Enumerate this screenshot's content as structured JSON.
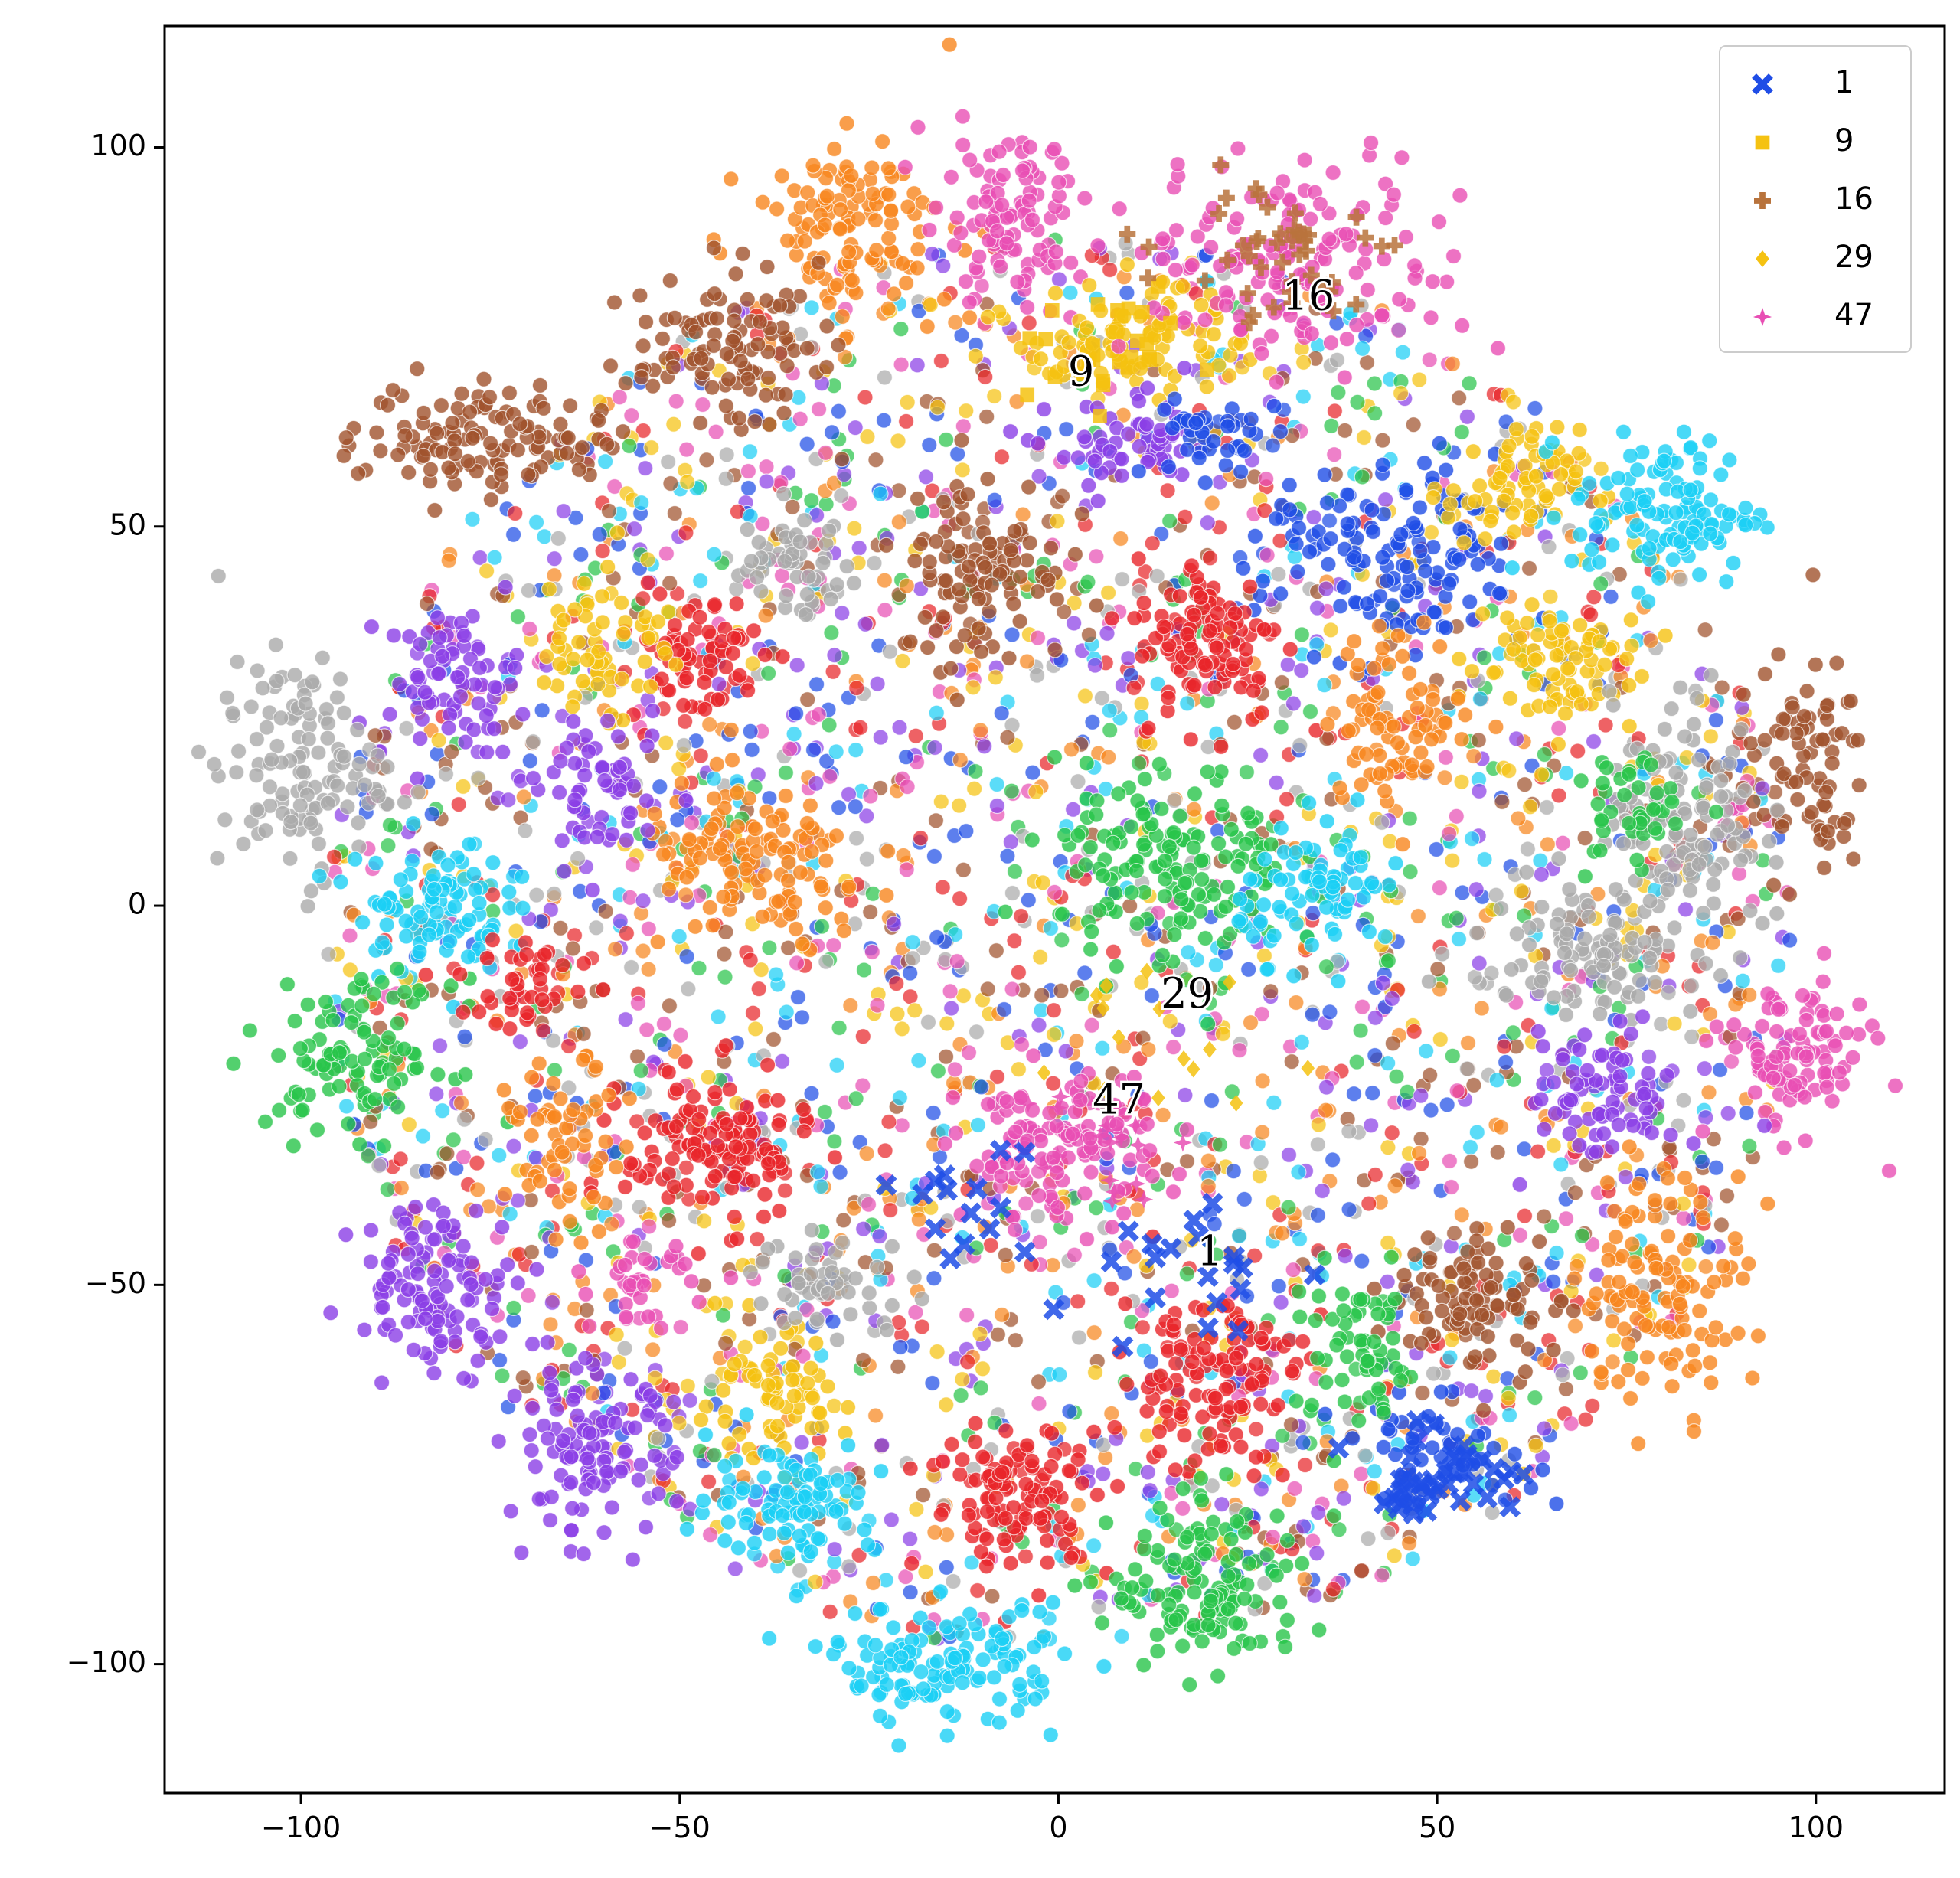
{
  "chart_data": {
    "type": "scatter",
    "title": "",
    "xlabel": "",
    "ylabel": "",
    "xlim": [
      -118,
      117
    ],
    "ylim": [
      -117,
      116
    ],
    "xticks": [
      -100,
      -50,
      0,
      50,
      100
    ],
    "yticks": [
      -100,
      -50,
      0,
      50,
      100
    ],
    "xtick_labels": [
      "−100",
      "−50",
      "0",
      "50",
      "100"
    ],
    "ytick_labels": [
      "−100",
      "−50",
      "0",
      "50",
      "100"
    ],
    "grid": false,
    "legend_position": "top-right",
    "legend": [
      {
        "label": "1",
        "marker": "x",
        "color": "#1f4de6"
      },
      {
        "label": "9",
        "marker": "square",
        "color": "#f5c211"
      },
      {
        "label": "16",
        "marker": "plus",
        "color": "#b8733c"
      },
      {
        "label": "29",
        "marker": "diamond",
        "color": "#f5c211"
      },
      {
        "label": "47",
        "marker": "star",
        "color": "#e84fb4"
      }
    ],
    "annotations": [
      {
        "text": "16",
        "x": 33,
        "y": 80
      },
      {
        "text": "9",
        "x": 3,
        "y": 70
      },
      {
        "text": "29",
        "x": 17,
        "y": -12
      },
      {
        "text": "47",
        "x": 8,
        "y": -26
      },
      {
        "text": "1",
        "x": 20,
        "y": -46
      }
    ],
    "palette": [
      "#1f4de6",
      "#f5c211",
      "#a0522d",
      "#e8262a",
      "#8b3ee6",
      "#f7861e",
      "#1ccff5",
      "#28c44a",
      "#e84fb4",
      "#aaaaaa"
    ],
    "clusters": [
      {
        "color": "#f7861e",
        "cx": -27,
        "cy": 90,
        "rx": 12,
        "ry": 10,
        "n": 120
      },
      {
        "color": "#e84fb4",
        "cx": -7,
        "cy": 90,
        "rx": 10,
        "ry": 10,
        "n": 100
      },
      {
        "color": "#a0522d",
        "cx": -44,
        "cy": 74,
        "rx": 11,
        "ry": 9,
        "n": 100
      },
      {
        "color": "#a0522d",
        "cx": -75,
        "cy": 62,
        "rx": 15,
        "ry": 7,
        "n": 120
      },
      {
        "color": "#f5c211",
        "cx": 10,
        "cy": 75,
        "rx": 14,
        "ry": 7,
        "n": 90
      },
      {
        "color": "#e84fb4",
        "cx": 32,
        "cy": 85,
        "rx": 20,
        "ry": 12,
        "n": 160
      },
      {
        "color": "#1f4de6",
        "cx": 45,
        "cy": 45,
        "rx": 16,
        "ry": 12,
        "n": 140
      },
      {
        "color": "#f5c211",
        "cx": 60,
        "cy": 55,
        "rx": 8,
        "ry": 7,
        "n": 70
      },
      {
        "color": "#1ccff5",
        "cx": 80,
        "cy": 52,
        "rx": 11,
        "ry": 9,
        "n": 120
      },
      {
        "color": "#e8262a",
        "cx": 20,
        "cy": 35,
        "rx": 9,
        "ry": 10,
        "n": 110
      },
      {
        "color": "#a0522d",
        "cx": -10,
        "cy": 45,
        "rx": 10,
        "ry": 12,
        "n": 100
      },
      {
        "color": "#e8262a",
        "cx": -48,
        "cy": 33,
        "rx": 8,
        "ry": 8,
        "n": 70
      },
      {
        "color": "#8b3ee6",
        "cx": -80,
        "cy": 30,
        "rx": 8,
        "ry": 8,
        "n": 70
      },
      {
        "color": "#aaaaaa",
        "cx": -100,
        "cy": 18,
        "rx": 10,
        "ry": 13,
        "n": 120
      },
      {
        "color": "#f5c211",
        "cx": 65,
        "cy": 32,
        "rx": 11,
        "ry": 9,
        "n": 80
      },
      {
        "color": "#a0522d",
        "cx": 98,
        "cy": 18,
        "rx": 8,
        "ry": 13,
        "n": 80
      },
      {
        "color": "#aaaaaa",
        "cx": 83,
        "cy": 12,
        "rx": 9,
        "ry": 14,
        "n": 110
      },
      {
        "color": "#f7861e",
        "cx": 45,
        "cy": 25,
        "rx": 9,
        "ry": 10,
        "n": 80
      },
      {
        "color": "#1ccff5",
        "cx": -83,
        "cy": 0,
        "rx": 9,
        "ry": 8,
        "n": 90
      },
      {
        "color": "#28c44a",
        "cx": 15,
        "cy": 5,
        "rx": 14,
        "ry": 12,
        "n": 150
      },
      {
        "color": "#1ccff5",
        "cx": 35,
        "cy": 2,
        "rx": 10,
        "ry": 8,
        "n": 80
      },
      {
        "color": "#f7861e",
        "cx": -40,
        "cy": 5,
        "rx": 14,
        "ry": 10,
        "n": 120
      },
      {
        "color": "#aaaaaa",
        "cx": 70,
        "cy": -5,
        "rx": 14,
        "ry": 8,
        "n": 100
      },
      {
        "color": "#28c44a",
        "cx": -92,
        "cy": -20,
        "rx": 11,
        "ry": 9,
        "n": 100
      },
      {
        "color": "#e84fb4",
        "cx": 97,
        "cy": -20,
        "rx": 9,
        "ry": 9,
        "n": 100
      },
      {
        "color": "#8b3ee6",
        "cx": 72,
        "cy": -25,
        "rx": 9,
        "ry": 8,
        "n": 80
      },
      {
        "color": "#e8262a",
        "cx": -45,
        "cy": -32,
        "rx": 11,
        "ry": 9,
        "n": 130
      },
      {
        "color": "#e84fb4",
        "cx": 0,
        "cy": -32,
        "rx": 12,
        "ry": 9,
        "n": 120
      },
      {
        "color": "#f7861e",
        "cx": -65,
        "cy": -32,
        "rx": 7,
        "ry": 10,
        "n": 60
      },
      {
        "color": "#8b3ee6",
        "cx": -82,
        "cy": -50,
        "rx": 10,
        "ry": 10,
        "n": 110
      },
      {
        "color": "#f7861e",
        "cx": 80,
        "cy": -50,
        "rx": 10,
        "ry": 14,
        "n": 120
      },
      {
        "color": "#a0522d",
        "cx": 55,
        "cy": -52,
        "rx": 10,
        "ry": 9,
        "n": 90
      },
      {
        "color": "#e8262a",
        "cx": 20,
        "cy": -62,
        "rx": 11,
        "ry": 11,
        "n": 120
      },
      {
        "color": "#f5c211",
        "cx": -38,
        "cy": -65,
        "rx": 9,
        "ry": 8,
        "n": 70
      },
      {
        "color": "#8b3ee6",
        "cx": -62,
        "cy": -72,
        "rx": 10,
        "ry": 10,
        "n": 110
      },
      {
        "color": "#e8262a",
        "cx": -5,
        "cy": -78,
        "rx": 11,
        "ry": 9,
        "n": 110
      },
      {
        "color": "#1ccff5",
        "cx": -35,
        "cy": -78,
        "rx": 10,
        "ry": 7,
        "n": 90
      },
      {
        "color": "#28c44a",
        "cx": 20,
        "cy": -90,
        "rx": 12,
        "ry": 10,
        "n": 130
      },
      {
        "color": "#1ccff5",
        "cx": -15,
        "cy": -100,
        "rx": 14,
        "ry": 7,
        "n": 130
      },
      {
        "color": "#e84fb4",
        "cx": -55,
        "cy": -50,
        "rx": 6,
        "ry": 5,
        "n": 35
      },
      {
        "color": "#aaaaaa",
        "cx": -35,
        "cy": 45,
        "rx": 8,
        "ry": 6,
        "n": 50
      },
      {
        "color": "#8b3ee6",
        "cx": 10,
        "cy": 60,
        "rx": 10,
        "ry": 6,
        "n": 60
      },
      {
        "color": "#1f4de6",
        "cx": 20,
        "cy": 62,
        "rx": 8,
        "ry": 5,
        "n": 40
      },
      {
        "color": "#28c44a",
        "cx": 75,
        "cy": 12,
        "rx": 6,
        "ry": 8,
        "n": 40
      },
      {
        "color": "#1f4de6",
        "cx": 50,
        "cy": -72,
        "rx": 12,
        "ry": 6,
        "n": 45
      },
      {
        "color": "#aaaaaa",
        "cx": -30,
        "cy": -50,
        "rx": 10,
        "ry": 6,
        "n": 50
      },
      {
        "color": "#e8262a",
        "cx": -70,
        "cy": -10,
        "rx": 8,
        "ry": 6,
        "n": 40
      },
      {
        "color": "#f5c211",
        "cx": -60,
        "cy": 35,
        "rx": 8,
        "ry": 10,
        "n": 60
      },
      {
        "color": "#8b3ee6",
        "cx": -60,
        "cy": 15,
        "rx": 8,
        "ry": 8,
        "n": 60
      },
      {
        "color": "#28c44a",
        "cx": 40,
        "cy": -60,
        "rx": 8,
        "ry": 10,
        "n": 60
      }
    ],
    "background_n": 3200,
    "background_radius": 95
  }
}
